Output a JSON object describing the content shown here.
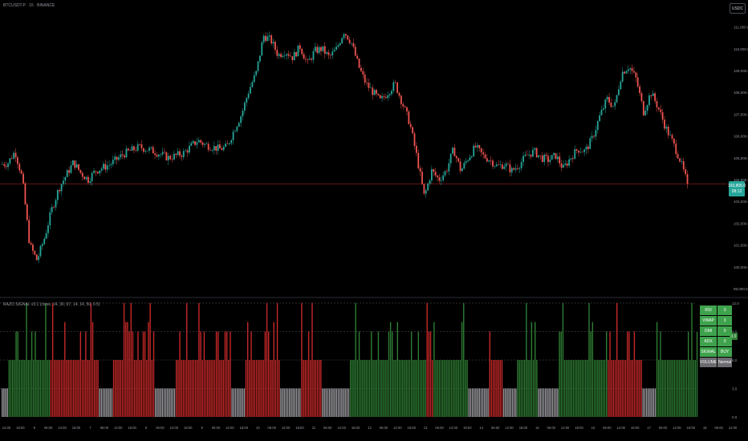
{
  "header": {
    "symbol": "BTCUSDT.P · 15 · BINANCE",
    "currency": "USDC"
  },
  "price_axis": [
    "111,000.0",
    "110,000.0",
    "109,000.0",
    "108,000.0",
    "107,000.0",
    "106,000.0",
    "105,000.0",
    "104,000.0",
    "103,000.0",
    "102,000.0",
    "101,000.0",
    "100,000.0",
    "99,000.0"
  ],
  "current_price": {
    "price": "103,806.0",
    "countdown": "08:12"
  },
  "indicator": {
    "title": "RAZO SIGNAL v3.1 (close, 14, 30, 67, 14, 14, 50, 0.5)",
    "axis_labels": [
      "12.0",
      "9.0",
      "6.0",
      "3.0",
      "0.0"
    ],
    "current_value": "8.0"
  },
  "time_axis": [
    "12:00",
    "18:00",
    "9",
    "06:00",
    "12:00",
    "18:00",
    "7",
    "06:00",
    "12:00",
    "18:00",
    "8",
    "06:00",
    "12:00",
    "18:00",
    "9",
    "06:00",
    "12:00",
    "18:00",
    "10",
    "06:00",
    "12:00",
    "18:00",
    "11",
    "06:00",
    "12:00",
    "18:00",
    "12",
    "06:00",
    "12:00",
    "18:00",
    "13",
    "06:00",
    "12:00",
    "18:00",
    "14",
    "06:00",
    "12:00",
    "18:00",
    "15",
    "06:00",
    "12:00",
    "18:00",
    "16",
    "06:00",
    "12:00",
    "18:00",
    "17",
    "06:00",
    "12:00",
    "18:00",
    "18",
    "06:00",
    "12:00"
  ],
  "signal_table": [
    {
      "label": "RSI",
      "value": "3"
    },
    {
      "label": "VWAP",
      "value": "3"
    },
    {
      "label": "DMI",
      "value": "0"
    },
    {
      "label": "ADX",
      "value": "0"
    },
    {
      "label": "SIGNAL",
      "value": "BUY"
    },
    {
      "label": "VOLUME",
      "value": "Normal"
    }
  ],
  "colors": {
    "up": "#26a69a",
    "down": "#ef5350",
    "bar_green": "#2e7d32",
    "bar_red": "#c62828",
    "bar_gray": "#9e9ea3",
    "price_line": "#8a1f1f"
  },
  "chart_data": {
    "type": "candlestick",
    "title": "BTCUSDT.P · 15 · BINANCE",
    "ylim": [
      99000,
      111500
    ],
    "price_path": [
      [
        0,
        104700
      ],
      [
        0.01,
        104750
      ],
      [
        0.02,
        105300
      ],
      [
        0.03,
        104050
      ],
      [
        0.04,
        101000
      ],
      [
        0.05,
        100300
      ],
      [
        0.06,
        101300
      ],
      [
        0.07,
        102600
      ],
      [
        0.08,
        103600
      ],
      [
        0.09,
        104200
      ],
      [
        0.1,
        104800
      ],
      [
        0.11,
        104300
      ],
      [
        0.12,
        104000
      ],
      [
        0.13,
        104400
      ],
      [
        0.15,
        104700
      ],
      [
        0.17,
        105200
      ],
      [
        0.19,
        105500
      ],
      [
        0.21,
        105300
      ],
      [
        0.23,
        105000
      ],
      [
        0.25,
        105200
      ],
      [
        0.27,
        105800
      ],
      [
        0.28,
        105600
      ],
      [
        0.3,
        105400
      ],
      [
        0.31,
        105500
      ],
      [
        0.32,
        106300
      ],
      [
        0.33,
        107000
      ],
      [
        0.34,
        108100
      ],
      [
        0.35,
        108900
      ],
      [
        0.36,
        110600
      ],
      [
        0.37,
        110400
      ],
      [
        0.38,
        109700
      ],
      [
        0.39,
        109900
      ],
      [
        0.4,
        109600
      ],
      [
        0.41,
        110100
      ],
      [
        0.42,
        109300
      ],
      [
        0.43,
        109900
      ],
      [
        0.44,
        110000
      ],
      [
        0.45,
        109600
      ],
      [
        0.46,
        110000
      ],
      [
        0.47,
        110800
      ],
      [
        0.48,
        110300
      ],
      [
        0.49,
        109200
      ],
      [
        0.5,
        108400
      ],
      [
        0.51,
        108000
      ],
      [
        0.52,
        107600
      ],
      [
        0.53,
        108000
      ],
      [
        0.54,
        108400
      ],
      [
        0.55,
        107500
      ],
      [
        0.56,
        106600
      ],
      [
        0.57,
        105000
      ],
      [
        0.58,
        103200
      ],
      [
        0.59,
        104400
      ],
      [
        0.6,
        104000
      ],
      [
        0.61,
        104400
      ],
      [
        0.62,
        105400
      ],
      [
        0.63,
        104400
      ],
      [
        0.64,
        105000
      ],
      [
        0.65,
        105500
      ],
      [
        0.66,
        105100
      ],
      [
        0.67,
        104900
      ],
      [
        0.68,
        104600
      ],
      [
        0.69,
        104700
      ],
      [
        0.7,
        104400
      ],
      [
        0.71,
        104700
      ],
      [
        0.72,
        105100
      ],
      [
        0.73,
        105300
      ],
      [
        0.74,
        105000
      ],
      [
        0.75,
        104900
      ],
      [
        0.76,
        105100
      ],
      [
        0.77,
        104500
      ],
      [
        0.78,
        105000
      ],
      [
        0.79,
        105400
      ],
      [
        0.8,
        105300
      ],
      [
        0.81,
        105900
      ],
      [
        0.82,
        106900
      ],
      [
        0.83,
        107700
      ],
      [
        0.84,
        107300
      ],
      [
        0.85,
        108900
      ],
      [
        0.86,
        109200
      ],
      [
        0.87,
        108600
      ],
      [
        0.88,
        107100
      ],
      [
        0.89,
        108000
      ],
      [
        0.9,
        107300
      ],
      [
        0.91,
        106400
      ],
      [
        0.92,
        105700
      ],
      [
        0.93,
        104900
      ],
      [
        0.94,
        103806
      ]
    ],
    "indicator_series": {
      "ylim": [
        0,
        12
      ],
      "value_range": [
        0,
        12
      ],
      "colors": [
        "gray",
        "green",
        "red"
      ]
    }
  }
}
